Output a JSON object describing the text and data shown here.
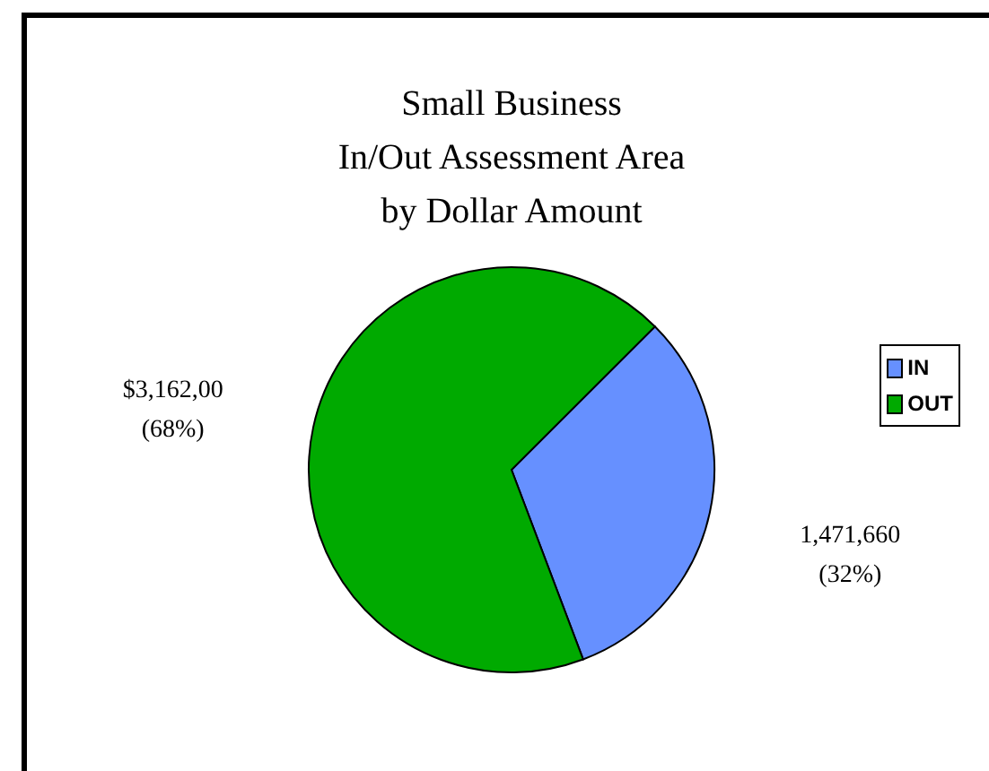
{
  "chart_data": {
    "type": "pie",
    "title": "Small Business\nIn/Out Assessment Area\nby Dollar Amount",
    "categories": [
      "IN",
      "OUT"
    ],
    "values": [
      1471660,
      3162000
    ],
    "colors": [
      "#6690ff",
      "#00aa00"
    ],
    "value_labels": [
      "1,471,660\n(32%)",
      "$3,162,00\n(68%)"
    ],
    "legend": "right"
  }
}
